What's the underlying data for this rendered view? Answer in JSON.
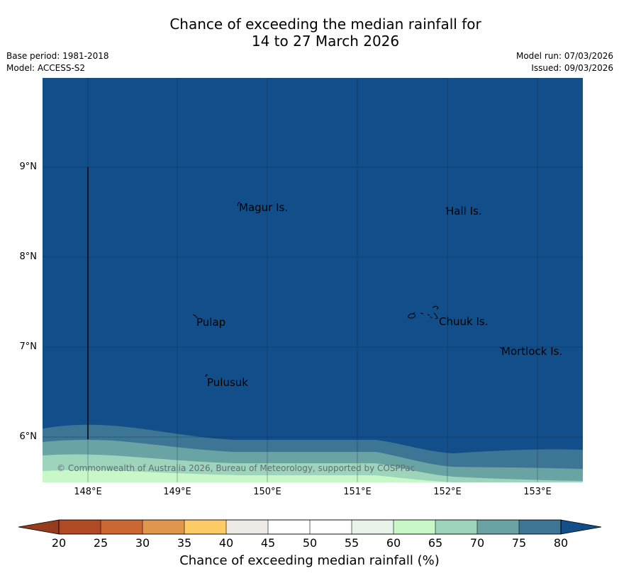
{
  "title": {
    "line1": "Chance of exceeding the median rainfall for",
    "line2": "14 to 27 March 2026"
  },
  "meta": {
    "base_period": "Base period: 1981-2018",
    "model": "Model: ACCESS-S2",
    "model_run": "Model run: 07/03/2026",
    "issued": "Issued: 09/03/2026"
  },
  "axes": {
    "lat_labels": [
      "9°N",
      "8°N",
      "7°N",
      "6°N"
    ],
    "lon_labels": [
      "148°E",
      "149°E",
      "150°E",
      "151°E",
      "152°E",
      "153°E"
    ]
  },
  "places": [
    {
      "name": "Magur Is."
    },
    {
      "name": "Hall Is."
    },
    {
      "name": "Pulap"
    },
    {
      "name": "Chuuk Is."
    },
    {
      "name": "Mortlock Is."
    },
    {
      "name": "Pulusuk"
    }
  ],
  "copyright": "© Commonwealth of Australia 2026, Bureau of Meteorology, supported by COSPPac",
  "colorbar": {
    "ticks": [
      "20",
      "25",
      "30",
      "35",
      "40",
      "45",
      "50",
      "55",
      "60",
      "65",
      "70",
      "75",
      "80"
    ],
    "colors": [
      "#b04a25",
      "#cc6633",
      "#e1964e",
      "#fdcc66",
      "#eeeae6",
      "#ffffff",
      "#ffffff",
      "#e9f3ea",
      "#c8f8c8",
      "#9ed4bc",
      "#6aa3a4",
      "#3d7594"
    ],
    "low_extend_color": "#973b1f",
    "high_extend_color": "#124e89",
    "label": "Chance of exceeding median rainfall (%)"
  },
  "map_colors": {
    "ocean_80_plus": "#124e89",
    "band_75_80": "#3d7594",
    "band_70_75": "#6aa3a4",
    "band_65_70": "#9ed4bc",
    "band_60_65": "#c8f8c8"
  }
}
